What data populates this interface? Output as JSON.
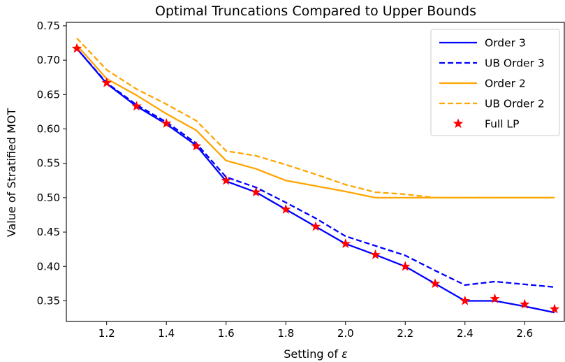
{
  "chart_data": {
    "type": "line",
    "title": "Optimal Truncations Compared to Upper Bounds",
    "xlabel": "Setting of ",
    "xlabel_symbol": "ε",
    "ylabel": "Value of Stratified MOT",
    "xlim": [
      1.065,
      2.735
    ],
    "ylim": [
      0.32,
      0.755
    ],
    "xticks": [
      1.2,
      1.4,
      1.6,
      1.8,
      2.0,
      2.2,
      2.4,
      2.6
    ],
    "xtick_labels": [
      "1.2",
      "1.4",
      "1.6",
      "1.8",
      "2.0",
      "2.2",
      "2.4",
      "2.6"
    ],
    "yticks": [
      0.35,
      0.4,
      0.45,
      0.5,
      0.55,
      0.6,
      0.65,
      0.7,
      0.75
    ],
    "ytick_labels": [
      "0.35",
      "0.40",
      "0.45",
      "0.50",
      "0.55",
      "0.60",
      "0.65",
      "0.70",
      "0.75"
    ],
    "grid": false,
    "legend_position": "top-right",
    "x": [
      1.1,
      1.2,
      1.3,
      1.4,
      1.5,
      1.6,
      1.7,
      1.8,
      1.9,
      2.0,
      2.1,
      2.2,
      2.3,
      2.4,
      2.5,
      2.6,
      2.7
    ],
    "series": [
      {
        "name": "Order 3",
        "color": "#0000ff",
        "style": "solid",
        "values": [
          0.717,
          0.666,
          0.633,
          0.607,
          0.576,
          0.524,
          0.508,
          0.483,
          0.458,
          0.433,
          0.417,
          0.4,
          0.375,
          0.35,
          0.35,
          0.342,
          0.333
        ]
      },
      {
        "name": "UB Order 3",
        "color": "#0000ff",
        "style": "dashed",
        "values": [
          0.717,
          0.667,
          0.635,
          0.61,
          0.579,
          0.53,
          0.515,
          0.493,
          0.47,
          0.444,
          0.43,
          0.416,
          0.394,
          0.373,
          0.378,
          0.374,
          0.37
        ]
      },
      {
        "name": "Order 2",
        "color": "#ffa500",
        "style": "solid",
        "values": [
          0.722,
          0.673,
          0.649,
          0.622,
          0.598,
          0.554,
          0.542,
          0.525,
          0.517,
          0.509,
          0.5,
          0.5,
          0.5,
          0.5,
          0.5,
          0.5,
          0.5
        ]
      },
      {
        "name": "UB Order 2",
        "color": "#ffa500",
        "style": "dashed",
        "values": [
          0.732,
          0.686,
          0.658,
          0.636,
          0.612,
          0.568,
          0.561,
          0.548,
          0.534,
          0.519,
          0.508,
          0.505,
          0.5,
          0.5,
          0.5,
          0.5,
          0.5
        ]
      },
      {
        "name": "Full LP",
        "color": "#ff0000",
        "style": "markers",
        "marker": "star",
        "values": [
          0.717,
          0.667,
          0.633,
          0.608,
          0.575,
          0.525,
          0.508,
          0.483,
          0.458,
          0.433,
          0.417,
          0.4,
          0.375,
          0.35,
          0.353,
          0.345,
          0.338
        ]
      }
    ]
  }
}
